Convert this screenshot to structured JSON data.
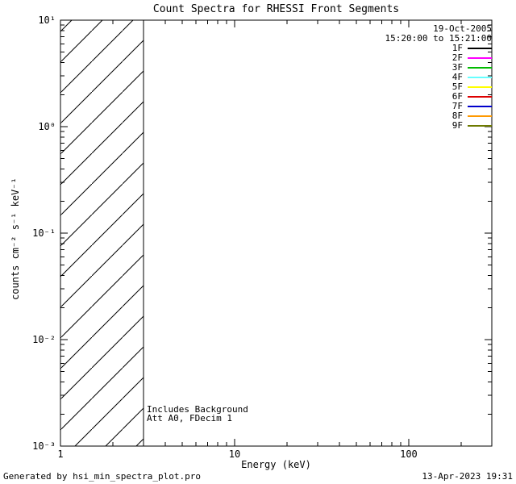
{
  "footer": {
    "left": "Generated by hsi_min_spectra_plot.pro",
    "right": "13-Apr-2023 19:31"
  },
  "chart_data": {
    "type": "line",
    "title": "Count Spectra for RHESSI Front Segments",
    "xlabel": "Energy (keV)",
    "ylabel": "counts cm⁻² s⁻¹ keV⁻¹",
    "x_scale": "log",
    "y_scale": "log",
    "xlim": [
      1,
      300
    ],
    "ylim": [
      0.001,
      10
    ],
    "x_ticks": [
      1,
      10,
      100
    ],
    "x_tick_labels": [
      "1",
      "10",
      "100"
    ],
    "y_ticks": [
      0.001,
      0.01,
      0.1,
      1,
      10
    ],
    "y_tick_labels": [
      "10⁻³",
      "10⁻²",
      "10⁻¹",
      "10⁰",
      "10¹"
    ],
    "grid": false,
    "series": [],
    "hatched_region": {
      "x_start": 1,
      "x_end": 3,
      "style": "diagonal-hatch"
    },
    "annotations": [
      "Includes Background",
      "Att A0, FDecim 1"
    ],
    "legend": {
      "position": "top-right",
      "date": "19-Oct-2005",
      "time_range": "15:20:00 to 15:21:00",
      "entries": [
        {
          "label": "1F",
          "color": "#000000"
        },
        {
          "label": "2F",
          "color": "#ff00ff"
        },
        {
          "label": "3F",
          "color": "#00bb00"
        },
        {
          "label": "4F",
          "color": "#66ffff"
        },
        {
          "label": "5F",
          "color": "#ffff00"
        },
        {
          "label": "6F",
          "color": "#dd0000"
        },
        {
          "label": "7F",
          "color": "#0000cc"
        },
        {
          "label": "8F",
          "color": "#ff9900"
        },
        {
          "label": "9F",
          "color": "#6e7a00"
        }
      ]
    }
  }
}
